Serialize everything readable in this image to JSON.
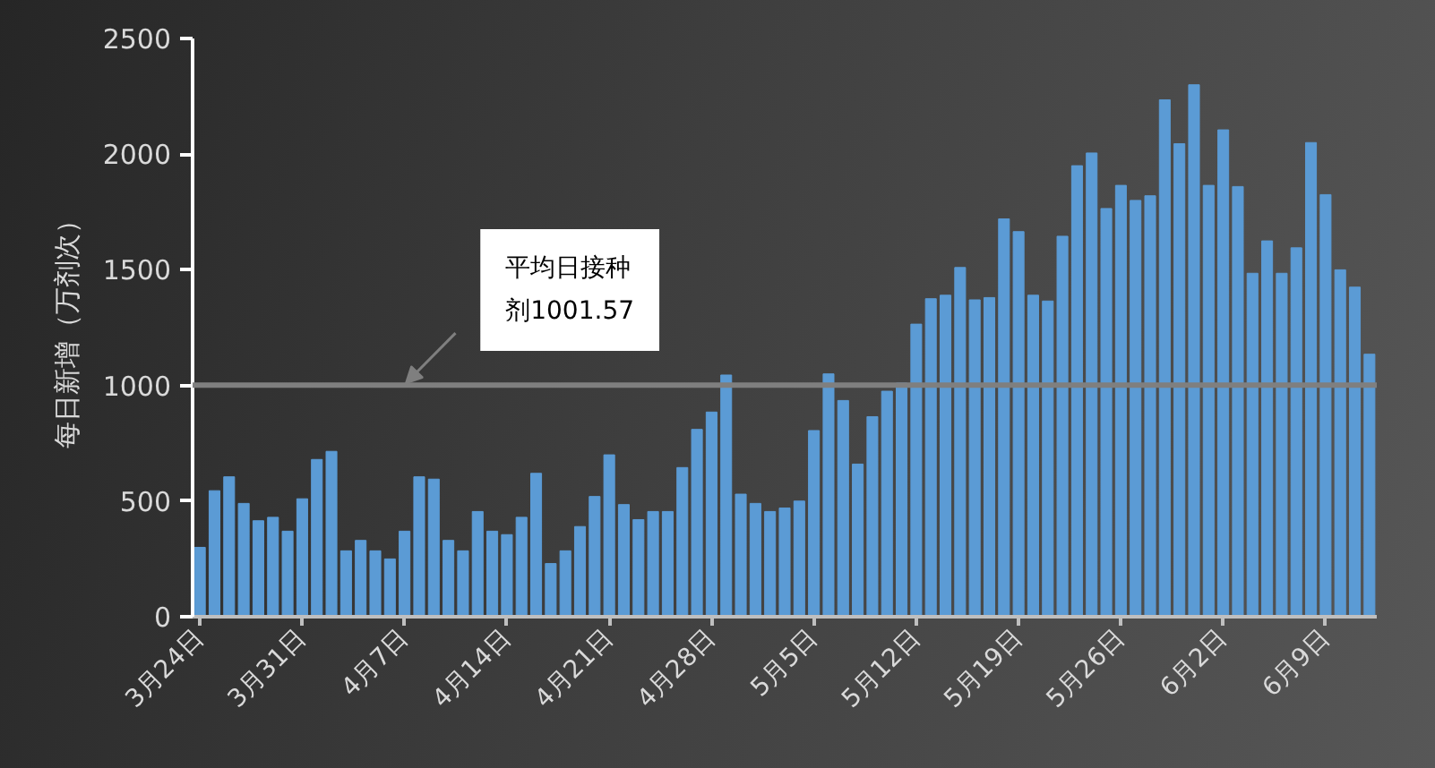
{
  "chart_data": {
    "type": "bar",
    "categories": [
      "3月24日",
      null,
      null,
      null,
      null,
      null,
      null,
      "3月31日",
      null,
      null,
      null,
      null,
      null,
      null,
      "4月7日",
      null,
      null,
      null,
      null,
      null,
      null,
      "4月14日",
      null,
      null,
      null,
      null,
      null,
      null,
      "4月21日",
      null,
      null,
      null,
      null,
      null,
      null,
      "4月28日",
      null,
      null,
      null,
      null,
      null,
      null,
      "5月5日",
      null,
      null,
      null,
      null,
      null,
      null,
      "5月12日",
      null,
      null,
      null,
      null,
      null,
      null,
      "5月19日",
      null,
      null,
      null,
      null,
      null,
      null,
      "5月26日",
      null,
      null,
      null,
      null,
      null,
      null,
      "6月2日",
      null,
      null,
      null,
      null,
      null,
      null,
      "6月9日",
      null,
      null,
      null
    ],
    "values": [
      300,
      545,
      605,
      490,
      415,
      430,
      370,
      510,
      680,
      715,
      285,
      330,
      285,
      250,
      370,
      605,
      595,
      330,
      285,
      455,
      370,
      355,
      430,
      620,
      230,
      285,
      390,
      520,
      700,
      485,
      420,
      455,
      455,
      645,
      810,
      885,
      1045,
      530,
      490,
      455,
      470,
      500,
      805,
      1050,
      935,
      660,
      865,
      975,
      1010,
      1265,
      1375,
      1390,
      1510,
      1370,
      1380,
      1720,
      1665,
      1390,
      1365,
      1645,
      1950,
      2005,
      1765,
      1865,
      1800,
      1820,
      2235,
      2045,
      2300,
      1865,
      2105,
      1860,
      1485,
      1625,
      1485,
      1595,
      2050,
      1825,
      1500,
      1425,
      1135
    ],
    "color": "#5b9bd5",
    "ylabel": "每日新增（万剂次）",
    "ylim": [
      0,
      2500
    ],
    "yticks": [
      0,
      500,
      1000,
      1500,
      2000,
      2500
    ],
    "ref_lines": [
      {
        "axis": "y",
        "value": 1001.57,
        "label": "平均日接种剂1001.57",
        "color": "#7f7f7f"
      }
    ]
  }
}
